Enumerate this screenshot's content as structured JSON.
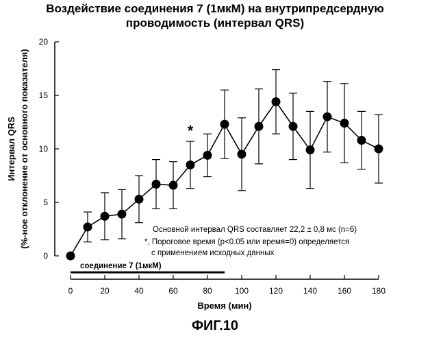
{
  "title_line1": "Воздействие соединения 7 (1мкМ) на внутрипредсердную",
  "title_line2": "проводимость (интервал QRS)",
  "figure_label": "ФИГ.10",
  "chart_data": {
    "type": "line",
    "title": "Воздействие соединения 7 (1мкМ) на внутрипредсердную проводимость (интервал QRS)",
    "xlabel": "Время (мин)",
    "ylabel_line1": "Интервал QRS",
    "ylabel_line2": "(%-ное отклонение от основного показателя)",
    "xlim": [
      0,
      180
    ],
    "ylim": [
      0,
      20
    ],
    "x_ticks": [
      0,
      20,
      40,
      60,
      80,
      100,
      120,
      140,
      160,
      180
    ],
    "y_ticks": [
      0,
      5,
      10,
      15,
      20
    ],
    "grid": false,
    "series": [
      {
        "x": [
          0,
          10,
          20,
          30,
          40,
          50,
          60,
          70,
          80,
          90,
          100,
          110,
          120,
          130,
          140,
          150,
          160,
          170,
          180
        ],
        "y": [
          0,
          2.7,
          3.7,
          3.9,
          5.3,
          6.7,
          6.6,
          8.5,
          9.4,
          12.3,
          9.5,
          12.1,
          14.4,
          12.1,
          9.9,
          13.0,
          12.4,
          10.8,
          10.0
        ],
        "error": [
          0,
          1.4,
          2.2,
          2.3,
          2.2,
          2.3,
          2.2,
          2.2,
          2.0,
          3.2,
          3.4,
          3.5,
          3.0,
          3.1,
          3.6,
          3.3,
          3.7,
          2.7,
          3.2
        ],
        "color": "#000000"
      }
    ],
    "significance_marker": {
      "x": 70,
      "label": "*"
    },
    "treatment_bar": {
      "label": "соединение 7 (1мкМ)",
      "x_start": 0,
      "x_end": 90
    },
    "annotations": [
      "Основной интервал QRS составляет 22,2 ± 0,8 мс (n=6)",
      "*, Пороговое время (p<0.05 или время=0) определяется",
      "с применением исходных данных"
    ]
  }
}
